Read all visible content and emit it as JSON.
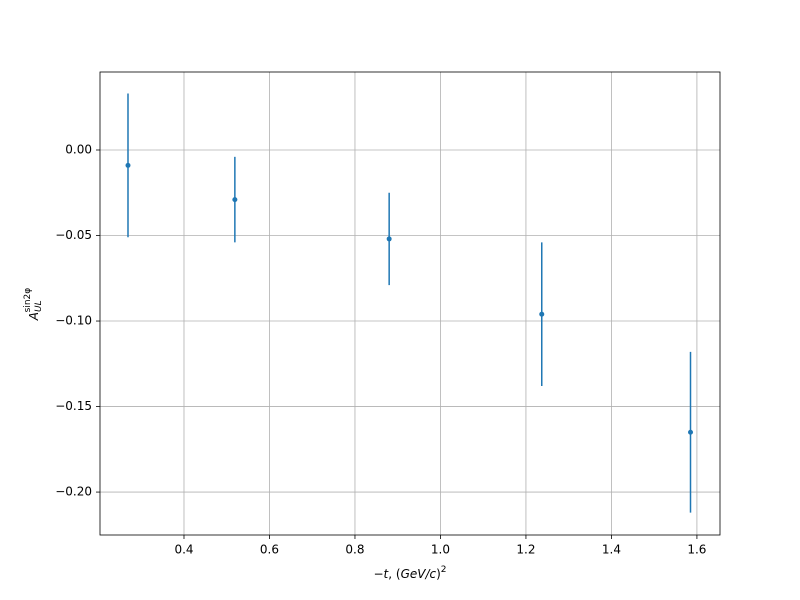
{
  "chart_data": {
    "type": "errorbar",
    "xlabel": {
      "pre": "−",
      "var": "t",
      "mid": ", (",
      "unit": "GeV/c",
      "post": ")",
      "sup": "2"
    },
    "ylabel": {
      "base": "A",
      "sub": "UL",
      "sup": "sin2φ"
    },
    "x": [
      0.269,
      0.519,
      0.88,
      1.237,
      1.585
    ],
    "series": [
      {
        "color": "#1f77b4",
        "values": [
          -0.009,
          -0.029,
          -0.052,
          -0.096,
          -0.165
        ],
        "errors": [
          0.042,
          0.025,
          0.027,
          0.042,
          0.047
        ]
      }
    ],
    "xlim": [
      0.2035,
      1.654
    ],
    "ylim": [
      -0.2251,
      0.0456
    ],
    "xticks": [
      0.4,
      0.6,
      0.8,
      {
        "value": 1,
        "label": "1.0"
      },
      1.2,
      1.4,
      1.6
    ],
    "yticks": [
      {
        "value": -0.2,
        "label": "−0.20"
      },
      {
        "value": -0.15,
        "label": "−0.15"
      },
      {
        "value": -0.1,
        "label": "−0.10"
      },
      {
        "value": -0.05,
        "label": "−0.05"
      },
      {
        "value": 0,
        "label": "0.00"
      }
    ],
    "grid": true
  }
}
